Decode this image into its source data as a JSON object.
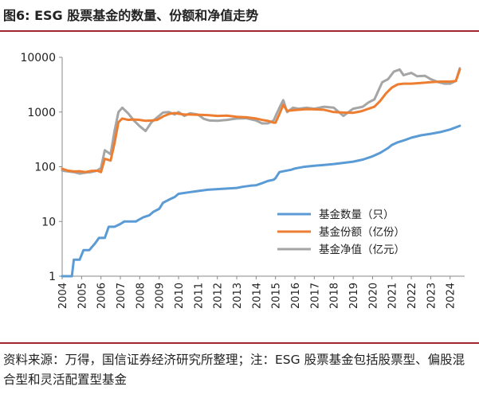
{
  "title": "图6: ESG 股票基金的数量、份额和净值走势",
  "source": "资料来源：万得，国信证券经济研究所整理；注：ESG 股票基金包括股票型、偏股混合型和灵活配置型基金",
  "chart_data": {
    "type": "line",
    "title": "",
    "xlabel": "",
    "ylabel": "",
    "yscale": "log",
    "ylim": [
      1,
      10000
    ],
    "xlim": [
      2004,
      2024.75
    ],
    "y_ticks": [
      "1",
      "10",
      "100",
      "1000",
      "10000"
    ],
    "x_ticks": [
      "2004",
      "2005",
      "2006",
      "2007",
      "2008",
      "2009",
      "2010",
      "2011",
      "2012",
      "2013",
      "2014",
      "2015",
      "2016",
      "2017",
      "2018",
      "2019",
      "2020",
      "2021",
      "2022",
      "2023",
      "2024"
    ],
    "legend_position": "center-right",
    "series": [
      {
        "name": "基金数量（只）",
        "color": "#5b9bd5",
        "points": [
          [
            2004,
            1
          ],
          [
            2004.5,
            1
          ],
          [
            2004.6,
            2
          ],
          [
            2004.9,
            2
          ],
          [
            2005.1,
            3
          ],
          [
            2005.4,
            3
          ],
          [
            2005.7,
            4
          ],
          [
            2005.9,
            5
          ],
          [
            2006.2,
            5
          ],
          [
            2006.4,
            8
          ],
          [
            2006.7,
            8
          ],
          [
            2007.0,
            9
          ],
          [
            2007.2,
            10
          ],
          [
            2007.5,
            10
          ],
          [
            2007.8,
            10
          ],
          [
            2008.0,
            11
          ],
          [
            2008.2,
            12
          ],
          [
            2008.5,
            13
          ],
          [
            2008.7,
            15
          ],
          [
            2009.0,
            17
          ],
          [
            2009.2,
            22
          ],
          [
            2009.5,
            25
          ],
          [
            2009.8,
            28
          ],
          [
            2010.0,
            32
          ],
          [
            2010.5,
            34
          ],
          [
            2011.0,
            36
          ],
          [
            2011.5,
            38
          ],
          [
            2012.0,
            39
          ],
          [
            2012.5,
            40
          ],
          [
            2013.0,
            41
          ],
          [
            2013.3,
            43
          ],
          [
            2013.7,
            45
          ],
          [
            2014.0,
            46
          ],
          [
            2014.3,
            50
          ],
          [
            2014.6,
            55
          ],
          [
            2014.9,
            58
          ],
          [
            2015.0,
            62
          ],
          [
            2015.2,
            80
          ],
          [
            2015.5,
            84
          ],
          [
            2015.8,
            88
          ],
          [
            2016.0,
            93
          ],
          [
            2016.5,
            100
          ],
          [
            2017.0,
            104
          ],
          [
            2017.5,
            108
          ],
          [
            2018.0,
            112
          ],
          [
            2018.5,
            118
          ],
          [
            2019.0,
            124
          ],
          [
            2019.5,
            135
          ],
          [
            2020.0,
            155
          ],
          [
            2020.4,
            180
          ],
          [
            2020.8,
            220
          ],
          [
            2021.0,
            250
          ],
          [
            2021.3,
            280
          ],
          [
            2021.7,
            310
          ],
          [
            2022.0,
            340
          ],
          [
            2022.5,
            375
          ],
          [
            2023.0,
            400
          ],
          [
            2023.5,
            430
          ],
          [
            2024.0,
            480
          ],
          [
            2024.5,
            560
          ]
        ]
      },
      {
        "name": "基金份额（亿份）",
        "color": "#ed7d31",
        "points": [
          [
            2004,
            92
          ],
          [
            2004.3,
            85
          ],
          [
            2004.6,
            82
          ],
          [
            2004.9,
            83
          ],
          [
            2005.2,
            80
          ],
          [
            2005.5,
            84
          ],
          [
            2005.8,
            85
          ],
          [
            2006.0,
            80
          ],
          [
            2006.2,
            140
          ],
          [
            2006.5,
            130
          ],
          [
            2006.7,
            270
          ],
          [
            2006.9,
            650
          ],
          [
            2007.1,
            760
          ],
          [
            2007.4,
            720
          ],
          [
            2007.7,
            730
          ],
          [
            2008.0,
            720
          ],
          [
            2008.3,
            690
          ],
          [
            2008.6,
            700
          ],
          [
            2008.9,
            720
          ],
          [
            2009.2,
            830
          ],
          [
            2009.5,
            920
          ],
          [
            2009.8,
            960
          ],
          [
            2010.0,
            930
          ],
          [
            2010.3,
            900
          ],
          [
            2010.6,
            900
          ],
          [
            2011.0,
            890
          ],
          [
            2011.5,
            880
          ],
          [
            2012.0,
            850
          ],
          [
            2012.5,
            860
          ],
          [
            2013.0,
            820
          ],
          [
            2013.5,
            800
          ],
          [
            2014.0,
            760
          ],
          [
            2014.3,
            720
          ],
          [
            2014.6,
            690
          ],
          [
            2014.9,
            640
          ],
          [
            2015.0,
            640
          ],
          [
            2015.2,
            920
          ],
          [
            2015.4,
            1350
          ],
          [
            2015.6,
            1050
          ],
          [
            2015.9,
            1080
          ],
          [
            2016.2,
            1100
          ],
          [
            2016.6,
            1130
          ],
          [
            2017.0,
            1120
          ],
          [
            2017.5,
            1100
          ],
          [
            2018.0,
            1000
          ],
          [
            2018.5,
            980
          ],
          [
            2019.0,
            970
          ],
          [
            2019.4,
            1030
          ],
          [
            2019.8,
            1150
          ],
          [
            2020.1,
            1250
          ],
          [
            2020.4,
            1600
          ],
          [
            2020.7,
            2200
          ],
          [
            2021.0,
            2800
          ],
          [
            2021.3,
            3200
          ],
          [
            2021.6,
            3300
          ],
          [
            2022.0,
            3300
          ],
          [
            2022.5,
            3400
          ],
          [
            2023.0,
            3500
          ],
          [
            2023.5,
            3600
          ],
          [
            2024.0,
            3600
          ],
          [
            2024.3,
            3700
          ],
          [
            2024.5,
            6000
          ]
        ]
      },
      {
        "name": "基金净值（亿元）",
        "color": "#a5a5a5",
        "points": [
          [
            2004,
            85
          ],
          [
            2004.3,
            82
          ],
          [
            2004.6,
            80
          ],
          [
            2004.9,
            75
          ],
          [
            2005.2,
            78
          ],
          [
            2005.5,
            80
          ],
          [
            2005.8,
            85
          ],
          [
            2006.0,
            95
          ],
          [
            2006.2,
            200
          ],
          [
            2006.5,
            170
          ],
          [
            2006.7,
            450
          ],
          [
            2006.9,
            1000
          ],
          [
            2007.1,
            1200
          ],
          [
            2007.4,
            950
          ],
          [
            2007.7,
            700
          ],
          [
            2008.0,
            550
          ],
          [
            2008.3,
            450
          ],
          [
            2008.6,
            650
          ],
          [
            2008.9,
            800
          ],
          [
            2009.2,
            980
          ],
          [
            2009.5,
            1000
          ],
          [
            2009.8,
            900
          ],
          [
            2010.0,
            1000
          ],
          [
            2010.3,
            850
          ],
          [
            2010.6,
            950
          ],
          [
            2011.0,
            900
          ],
          [
            2011.3,
            750
          ],
          [
            2011.6,
            700
          ],
          [
            2012.0,
            690
          ],
          [
            2012.5,
            720
          ],
          [
            2013.0,
            760
          ],
          [
            2013.5,
            770
          ],
          [
            2014.0,
            700
          ],
          [
            2014.3,
            620
          ],
          [
            2014.6,
            620
          ],
          [
            2014.9,
            700
          ],
          [
            2015.2,
            1200
          ],
          [
            2015.4,
            1650
          ],
          [
            2015.6,
            1000
          ],
          [
            2015.9,
            1200
          ],
          [
            2016.2,
            1150
          ],
          [
            2016.6,
            1200
          ],
          [
            2017.0,
            1150
          ],
          [
            2017.5,
            1250
          ],
          [
            2018.0,
            1200
          ],
          [
            2018.5,
            850
          ],
          [
            2019.0,
            1150
          ],
          [
            2019.5,
            1250
          ],
          [
            2019.8,
            1500
          ],
          [
            2020.1,
            1700
          ],
          [
            2020.5,
            3500
          ],
          [
            2020.8,
            4000
          ],
          [
            2021.1,
            5500
          ],
          [
            2021.4,
            6000
          ],
          [
            2021.6,
            4700
          ],
          [
            2022.0,
            5200
          ],
          [
            2022.3,
            4500
          ],
          [
            2022.7,
            4600
          ],
          [
            2023.0,
            4000
          ],
          [
            2023.4,
            3500
          ],
          [
            2023.7,
            3300
          ],
          [
            2024.0,
            3300
          ],
          [
            2024.3,
            3700
          ],
          [
            2024.5,
            6300
          ]
        ]
      }
    ]
  }
}
